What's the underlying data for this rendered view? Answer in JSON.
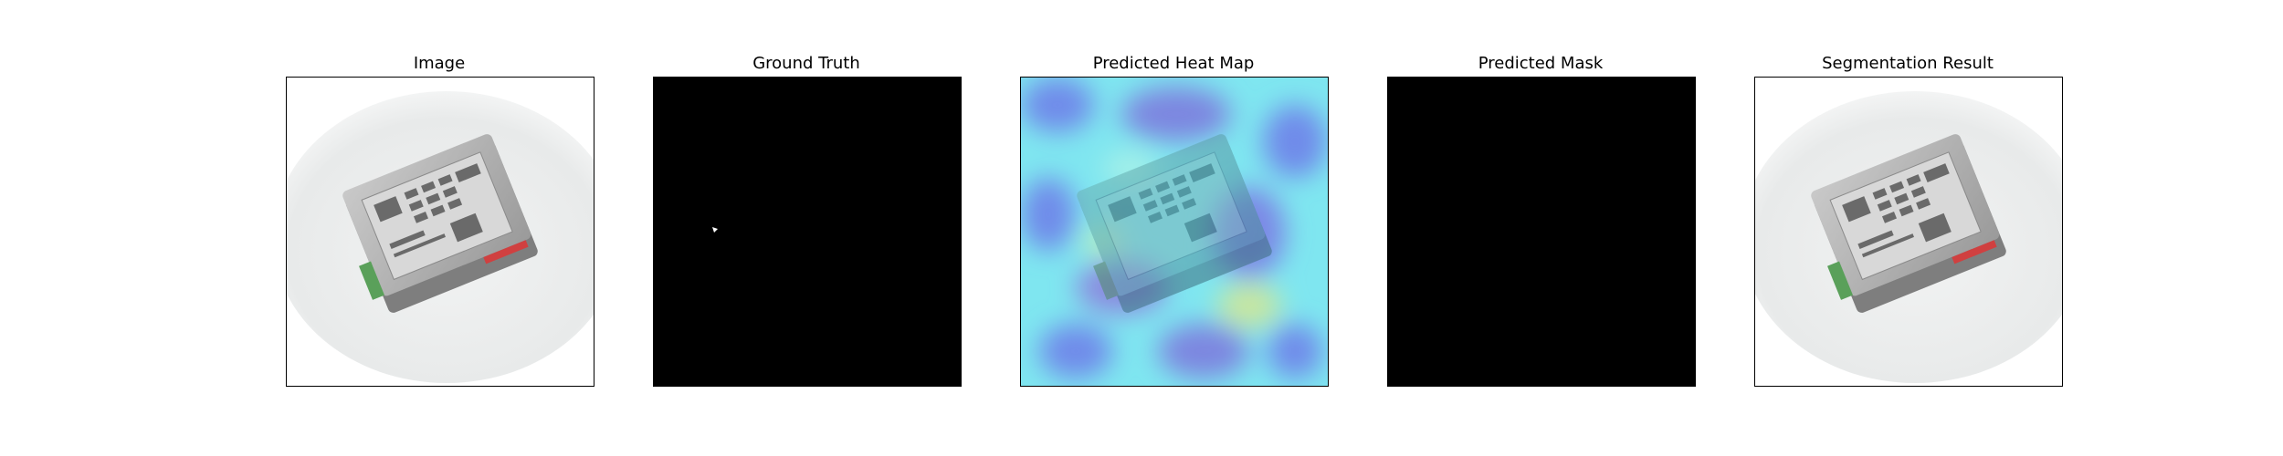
{
  "figure": {
    "panels": [
      {
        "title": "Image",
        "content": "photo"
      },
      {
        "title": "Ground Truth",
        "content": "mask-with-small-defect"
      },
      {
        "title": "Predicted Heat Map",
        "content": "heatmap-overlay"
      },
      {
        "title": "Predicted Mask",
        "content": "empty-mask"
      },
      {
        "title": "Segmentation Result",
        "content": "photo"
      }
    ],
    "colors": {
      "mask_background": "#000000",
      "mask_foreground": "#ffffff",
      "heatmap_low": "#6f8bea",
      "heatmap_mid": "#7fe6f0",
      "heatmap_high": "#c8e6a0",
      "device_body": "#a8a8a8",
      "terminal_green": "#5aa05a",
      "accent_red": "#d04040"
    }
  }
}
